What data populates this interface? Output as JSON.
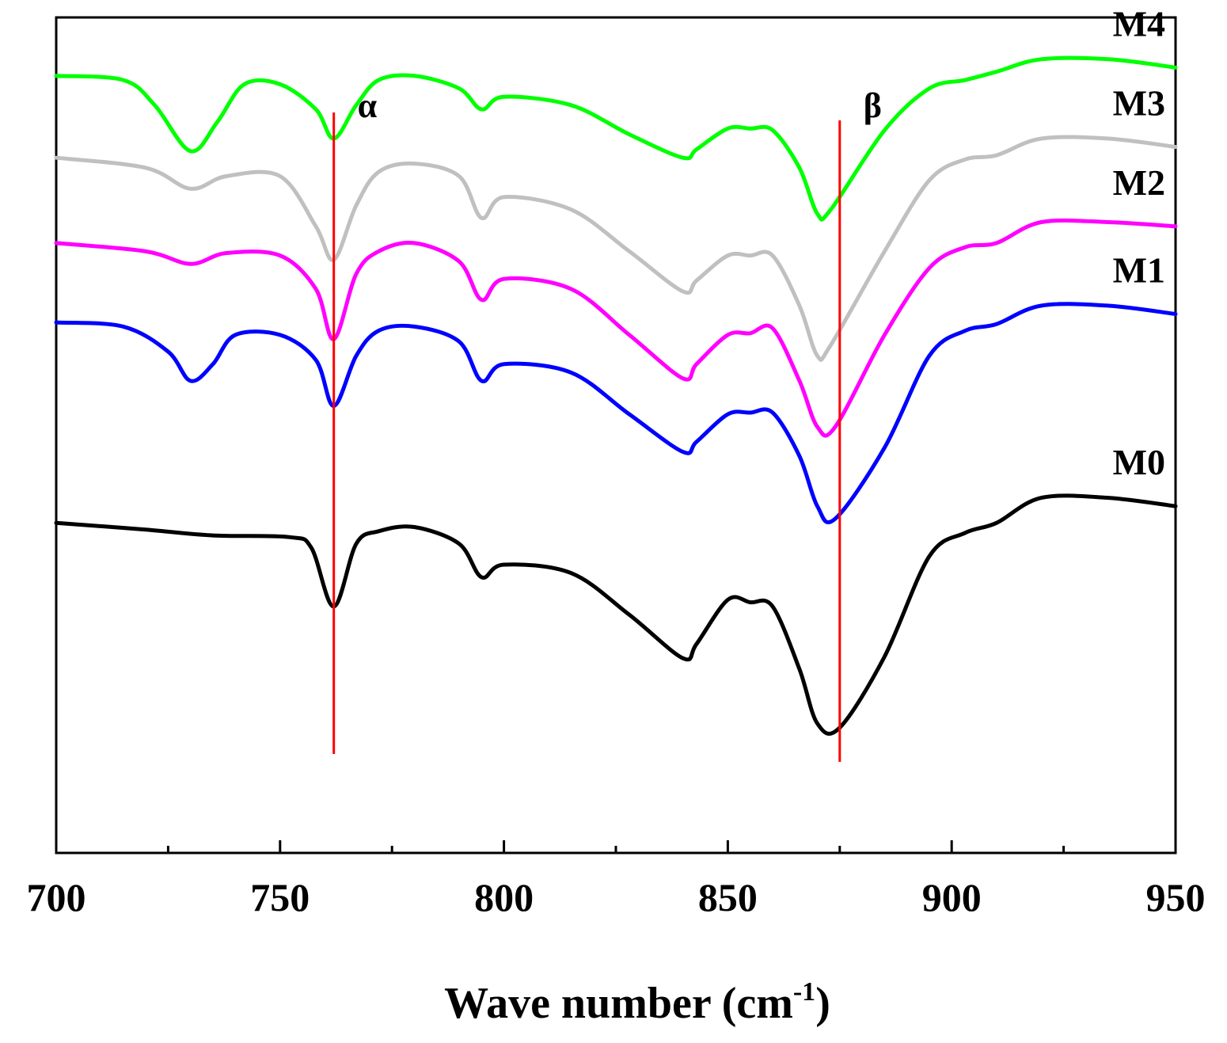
{
  "chart_data": {
    "type": "line",
    "title": "",
    "xlabel": "Wave number (cm",
    "xlabel_superscript": "-1",
    "xlabel_suffix": ")",
    "ylabel": "",
    "xlim": [
      700,
      950
    ],
    "ylim": [
      0,
      10
    ],
    "xticks": [
      "700",
      "750",
      "800",
      "850",
      "900",
      "950"
    ],
    "grid": false,
    "markers": [
      {
        "label": "α",
        "x": 762,
        "color": "#ff0000"
      },
      {
        "label": "β",
        "x": 875,
        "color": "#ff0000"
      }
    ],
    "series": [
      {
        "name": "M0",
        "color": "#000000",
        "points": [
          [
            700,
            3.95
          ],
          [
            720,
            3.87
          ],
          [
            735,
            3.8
          ],
          [
            752,
            3.78
          ],
          [
            757,
            3.65
          ],
          [
            762,
            2.95
          ],
          [
            767,
            3.7
          ],
          [
            772,
            3.85
          ],
          [
            780,
            3.9
          ],
          [
            790,
            3.7
          ],
          [
            795,
            3.3
          ],
          [
            800,
            3.45
          ],
          [
            815,
            3.35
          ],
          [
            828,
            2.85
          ],
          [
            840,
            2.33
          ],
          [
            843,
            2.5
          ],
          [
            850,
            3.03
          ],
          [
            855,
            3.0
          ],
          [
            860,
            2.95
          ],
          [
            866,
            2.2
          ],
          [
            870,
            1.55
          ],
          [
            875,
            1.5
          ],
          [
            885,
            2.35
          ],
          [
            895,
            3.55
          ],
          [
            903,
            3.83
          ],
          [
            910,
            3.95
          ],
          [
            920,
            4.25
          ],
          [
            935,
            4.25
          ],
          [
            950,
            4.15
          ]
        ]
      },
      {
        "name": "M1",
        "color": "#0000ff",
        "points": [
          [
            700,
            6.35
          ],
          [
            715,
            6.3
          ],
          [
            725,
            6.0
          ],
          [
            730,
            5.65
          ],
          [
            735,
            5.85
          ],
          [
            740,
            6.2
          ],
          [
            750,
            6.2
          ],
          [
            758,
            5.9
          ],
          [
            762,
            5.35
          ],
          [
            767,
            5.95
          ],
          [
            772,
            6.25
          ],
          [
            780,
            6.3
          ],
          [
            790,
            6.12
          ],
          [
            795,
            5.65
          ],
          [
            800,
            5.85
          ],
          [
            815,
            5.75
          ],
          [
            828,
            5.25
          ],
          [
            840,
            4.8
          ],
          [
            843,
            4.92
          ],
          [
            850,
            5.25
          ],
          [
            855,
            5.27
          ],
          [
            860,
            5.27
          ],
          [
            866,
            4.75
          ],
          [
            870,
            4.15
          ],
          [
            874,
            4.0
          ],
          [
            885,
            4.85
          ],
          [
            895,
            5.95
          ],
          [
            903,
            6.25
          ],
          [
            910,
            6.33
          ],
          [
            920,
            6.55
          ],
          [
            935,
            6.55
          ],
          [
            950,
            6.45
          ]
        ]
      },
      {
        "name": "M2",
        "color": "#ff00ff",
        "points": [
          [
            700,
            7.3
          ],
          [
            720,
            7.2
          ],
          [
            730,
            7.05
          ],
          [
            738,
            7.18
          ],
          [
            750,
            7.15
          ],
          [
            758,
            6.75
          ],
          [
            762,
            6.15
          ],
          [
            767,
            6.93
          ],
          [
            772,
            7.2
          ],
          [
            780,
            7.3
          ],
          [
            790,
            7.08
          ],
          [
            795,
            6.62
          ],
          [
            800,
            6.87
          ],
          [
            815,
            6.75
          ],
          [
            828,
            6.2
          ],
          [
            840,
            5.68
          ],
          [
            843,
            5.85
          ],
          [
            850,
            6.2
          ],
          [
            855,
            6.22
          ],
          [
            860,
            6.28
          ],
          [
            866,
            5.65
          ],
          [
            870,
            5.1
          ],
          [
            874,
            5.1
          ],
          [
            885,
            6.2
          ],
          [
            895,
            7.0
          ],
          [
            903,
            7.25
          ],
          [
            910,
            7.3
          ],
          [
            920,
            7.55
          ],
          [
            935,
            7.55
          ],
          [
            950,
            7.5
          ]
        ]
      },
      {
        "name": "M3",
        "color": "#c0c0c0",
        "points": [
          [
            700,
            8.32
          ],
          [
            720,
            8.2
          ],
          [
            730,
            7.95
          ],
          [
            738,
            8.1
          ],
          [
            750,
            8.1
          ],
          [
            758,
            7.5
          ],
          [
            762,
            7.1
          ],
          [
            767,
            7.75
          ],
          [
            772,
            8.15
          ],
          [
            780,
            8.25
          ],
          [
            790,
            8.1
          ],
          [
            795,
            7.6
          ],
          [
            800,
            7.85
          ],
          [
            815,
            7.7
          ],
          [
            828,
            7.2
          ],
          [
            840,
            6.72
          ],
          [
            843,
            6.85
          ],
          [
            850,
            7.15
          ],
          [
            855,
            7.15
          ],
          [
            860,
            7.15
          ],
          [
            866,
            6.55
          ],
          [
            870,
            5.95
          ],
          [
            873,
            6.08
          ],
          [
            885,
            7.2
          ],
          [
            895,
            8.05
          ],
          [
            903,
            8.3
          ],
          [
            910,
            8.35
          ],
          [
            920,
            8.55
          ],
          [
            935,
            8.55
          ],
          [
            950,
            8.45
          ]
        ]
      },
      {
        "name": "M4",
        "color": "#00ff00",
        "points": [
          [
            700,
            9.3
          ],
          [
            715,
            9.25
          ],
          [
            722,
            8.95
          ],
          [
            730,
            8.4
          ],
          [
            736,
            8.75
          ],
          [
            742,
            9.2
          ],
          [
            750,
            9.2
          ],
          [
            758,
            8.9
          ],
          [
            762,
            8.55
          ],
          [
            767,
            8.95
          ],
          [
            772,
            9.25
          ],
          [
            780,
            9.3
          ],
          [
            790,
            9.15
          ],
          [
            795,
            8.9
          ],
          [
            800,
            9.05
          ],
          [
            815,
            8.95
          ],
          [
            828,
            8.6
          ],
          [
            840,
            8.32
          ],
          [
            843,
            8.42
          ],
          [
            850,
            8.67
          ],
          [
            855,
            8.67
          ],
          [
            860,
            8.65
          ],
          [
            866,
            8.2
          ],
          [
            870,
            7.65
          ],
          [
            873,
            7.7
          ],
          [
            885,
            8.65
          ],
          [
            895,
            9.15
          ],
          [
            903,
            9.25
          ],
          [
            910,
            9.35
          ],
          [
            920,
            9.5
          ],
          [
            935,
            9.5
          ],
          [
            950,
            9.4
          ]
        ]
      }
    ]
  }
}
